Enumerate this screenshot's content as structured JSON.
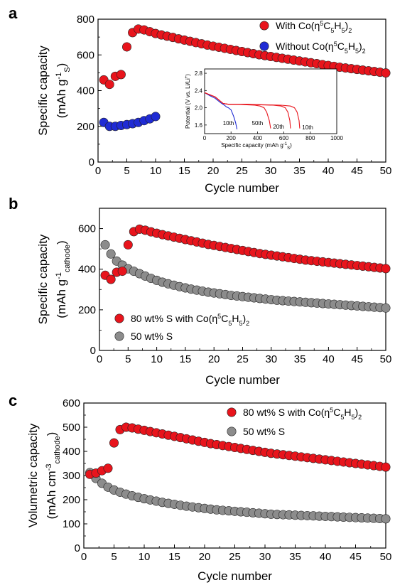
{
  "chart_data": [
    {
      "type": "scatter",
      "panel_label": "a",
      "xlabel": "Cycle number",
      "ylabel_main": "Specific capacity",
      "ylabel_unit": {
        "pre": "(mAh g",
        "sup": "-1",
        "sub": "S",
        "post": ")"
      },
      "xlim": [
        0,
        50
      ],
      "ylim": [
        0,
        800
      ],
      "xticks": [
        0,
        5,
        10,
        15,
        20,
        25,
        30,
        35,
        40,
        45,
        50
      ],
      "yticks": [
        0,
        200,
        400,
        600,
        800
      ],
      "legend_position": "top-right",
      "series": [
        {
          "name": "With Co(η5C5H5)2",
          "name_parts": {
            "pre": "With Co(η",
            "sup": "5",
            "mid": "C",
            "sub1": "5",
            "mid2": "H",
            "sub2": "5",
            "post": ")",
            "sub3": "2"
          },
          "color": "#e8141c",
          "x": [
            1,
            2,
            3,
            4,
            5,
            6,
            7,
            8,
            9,
            10,
            11,
            12,
            13,
            14,
            15,
            16,
            17,
            18,
            19,
            20,
            21,
            22,
            23,
            24,
            25,
            26,
            27,
            28,
            29,
            30,
            31,
            32,
            33,
            34,
            35,
            36,
            37,
            38,
            39,
            40,
            41,
            42,
            43,
            44,
            45,
            46,
            47,
            48,
            49,
            50
          ],
          "y": [
            460,
            435,
            480,
            490,
            645,
            725,
            745,
            740,
            730,
            720,
            712,
            705,
            698,
            690,
            683,
            676,
            669,
            662,
            655,
            649,
            643,
            637,
            631,
            625,
            619,
            613,
            607,
            601,
            596,
            591,
            586,
            581,
            576,
            571,
            566,
            561,
            556,
            551,
            546,
            541,
            536,
            531,
            527,
            523,
            519,
            515,
            511,
            507,
            503,
            499
          ]
        },
        {
          "name": "Without Co(η5C5H5)2",
          "name_parts": {
            "pre": "Without Co(η",
            "sup": "5",
            "mid": "C",
            "sub1": "5",
            "mid2": "H",
            "sub2": "5",
            "post": ")",
            "sub3": "2"
          },
          "color": "#1f2bd4",
          "x": [
            1,
            2,
            3,
            4,
            5,
            6,
            7,
            8,
            9,
            10
          ],
          "y": [
            222,
            200,
            200,
            205,
            210,
            215,
            222,
            232,
            242,
            255
          ]
        }
      ],
      "inset": {
        "type": "line",
        "xlabel": "Specific capacity (mAh g",
        "xlabel_sup": "-1",
        "xlabel_sub": "S",
        "xlabel_post": ")",
        "ylabel": "Potential (V vs. Li/Li",
        "ylabel_sup": "+",
        "ylabel_post": ")",
        "xlim": [
          0,
          1000
        ],
        "ylim": [
          1.4,
          2.9
        ],
        "xticks": [
          0,
          200,
          400,
          600,
          800,
          1000
        ],
        "yticks": [
          1.6,
          2.0,
          2.4,
          2.8
        ],
        "annotations": [
          "10th",
          "50th",
          "20th",
          "10th"
        ],
        "series": [
          {
            "name": "Without Co(η5C5H5)2 10th",
            "color": "#1f2bd4",
            "x": [
              0,
              40,
              80,
              120,
              150,
              165,
              180,
              200,
              220,
              235,
              245
            ],
            "y": [
              2.35,
              2.28,
              2.22,
              2.12,
              2.06,
              2.02,
              2.0,
              1.95,
              1.8,
              1.65,
              1.5
            ]
          },
          {
            "name": "With Co(η5C5H5)2 50th",
            "color": "#e8141c",
            "x": [
              0,
              40,
              80,
              140,
              180,
              250,
              320,
              380,
              420,
              450,
              470,
              490,
              500
            ],
            "y": [
              2.35,
              2.3,
              2.25,
              2.1,
              2.08,
              2.08,
              2.07,
              2.06,
              2.04,
              2.0,
              1.9,
              1.7,
              1.52
            ]
          },
          {
            "name": "With Co(η5C5H5)2 20th",
            "color": "#e8141c",
            "x": [
              0,
              40,
              80,
              140,
              180,
              300,
              420,
              520,
              580,
              610,
              630,
              645,
              650
            ],
            "y": [
              2.35,
              2.3,
              2.25,
              2.1,
              2.08,
              2.08,
              2.07,
              2.06,
              2.04,
              2.0,
              1.9,
              1.7,
              1.52
            ]
          },
          {
            "name": "With Co(η5C5H5)2 10th",
            "color": "#e8141c",
            "x": [
              0,
              40,
              80,
              140,
              180,
              320,
              460,
              580,
              650,
              680,
              700,
              715,
              720
            ],
            "y": [
              2.35,
              2.3,
              2.25,
              2.1,
              2.08,
              2.08,
              2.07,
              2.06,
              2.04,
              2.0,
              1.9,
              1.7,
              1.52
            ]
          }
        ]
      }
    },
    {
      "type": "scatter",
      "panel_label": "b",
      "xlabel": "Cycle number",
      "ylabel_main": "Specific capacity",
      "ylabel_unit": {
        "pre": "(mAh g",
        "sup": "-1",
        "sub": "cathode",
        "post": ")"
      },
      "xlim": [
        0,
        50
      ],
      "ylim": [
        0,
        700
      ],
      "xticks": [
        0,
        5,
        10,
        15,
        20,
        25,
        30,
        35,
        40,
        45,
        50
      ],
      "yticks": [
        0,
        200,
        400,
        600
      ],
      "legend_position": "bottom-left",
      "series": [
        {
          "name": "80 wt% S with Co(η5C5H5)2",
          "name_parts": {
            "pre": "80 wt% S with Co(η",
            "sup": "5",
            "mid": "C",
            "sub1": "5",
            "mid2": "H",
            "sub2": "5",
            "post": ")",
            "sub3": "2"
          },
          "color": "#e8141c",
          "x": [
            1,
            2,
            3,
            4,
            5,
            6,
            7,
            8,
            9,
            10,
            11,
            12,
            13,
            14,
            15,
            16,
            17,
            18,
            19,
            20,
            21,
            22,
            23,
            24,
            25,
            26,
            27,
            28,
            29,
            30,
            31,
            32,
            33,
            34,
            35,
            36,
            37,
            38,
            39,
            40,
            41,
            42,
            43,
            44,
            45,
            46,
            47,
            48,
            49,
            50
          ],
          "y": [
            370,
            350,
            385,
            390,
            520,
            585,
            597,
            592,
            584,
            577,
            570,
            564,
            558,
            552,
            546,
            540,
            534,
            528,
            522,
            517,
            512,
            507,
            502,
            497,
            492,
            487,
            482,
            477,
            473,
            469,
            465,
            461,
            457,
            453,
            449,
            445,
            442,
            439,
            436,
            433,
            430,
            427,
            424,
            421,
            418,
            415,
            412,
            409,
            406,
            403
          ]
        },
        {
          "name": "50 wt% S",
          "color": "#8c8c8c",
          "x": [
            1,
            2,
            3,
            4,
            5,
            6,
            7,
            8,
            9,
            10,
            11,
            12,
            13,
            14,
            15,
            16,
            17,
            18,
            19,
            20,
            21,
            22,
            23,
            24,
            25,
            26,
            27,
            28,
            29,
            30,
            31,
            32,
            33,
            34,
            35,
            36,
            37,
            38,
            39,
            40,
            41,
            42,
            43,
            44,
            45,
            46,
            47,
            48,
            49,
            50
          ],
          "y": [
            520,
            475,
            440,
            420,
            402,
            390,
            378,
            366,
            355,
            345,
            336,
            328,
            321,
            314,
            308,
            302,
            297,
            292,
            287,
            283,
            279,
            275,
            271,
            268,
            265,
            262,
            259,
            256,
            253,
            250,
            247,
            245,
            243,
            241,
            239,
            237,
            235,
            233,
            231,
            229,
            227,
            225,
            223,
            221,
            219,
            217,
            215,
            213,
            211,
            209
          ]
        }
      ]
    },
    {
      "type": "scatter",
      "panel_label": "c",
      "xlabel": "Cycle number",
      "ylabel_main": "Volumetric capacity",
      "ylabel_unit": {
        "pre": "(mAh cm",
        "sup": "-3",
        "sub": "cathode",
        "post": ")"
      },
      "xlim": [
        0,
        50
      ],
      "ylim": [
        0,
        600
      ],
      "xticks": [
        0,
        5,
        10,
        15,
        20,
        25,
        30,
        35,
        40,
        45,
        50
      ],
      "yticks": [
        0,
        100,
        200,
        300,
        400,
        500,
        600
      ],
      "legend_position": "top-right",
      "series": [
        {
          "name": "80 wt% S with Co(η5C5H5)2",
          "name_parts": {
            "pre": "80 wt% S with Co(η",
            "sup": "5",
            "mid": "C",
            "sub1": "5",
            "mid2": "H",
            "sub2": "5",
            "post": ")",
            "sub3": "2"
          },
          "color": "#e8141c",
          "x": [
            1,
            2,
            3,
            4,
            5,
            6,
            7,
            8,
            9,
            10,
            11,
            12,
            13,
            14,
            15,
            16,
            17,
            18,
            19,
            20,
            21,
            22,
            23,
            24,
            25,
            26,
            27,
            28,
            29,
            30,
            31,
            32,
            33,
            34,
            35,
            36,
            37,
            38,
            39,
            40,
            41,
            42,
            43,
            44,
            45,
            46,
            47,
            48,
            49,
            50
          ],
          "y": [
            305,
            310,
            320,
            330,
            435,
            490,
            500,
            497,
            492,
            487,
            482,
            477,
            472,
            467,
            462,
            457,
            452,
            447,
            442,
            437,
            432,
            428,
            424,
            420,
            416,
            412,
            408,
            404,
            400,
            396,
            392,
            389,
            386,
            383,
            380,
            377,
            374,
            371,
            368,
            365,
            362,
            359,
            356,
            353,
            350,
            347,
            344,
            341,
            338,
            335
          ]
        },
        {
          "name": "50 wt% S",
          "color": "#8c8c8c",
          "x": [
            1,
            2,
            3,
            4,
            5,
            6,
            7,
            8,
            9,
            10,
            11,
            12,
            13,
            14,
            15,
            16,
            17,
            18,
            19,
            20,
            21,
            22,
            23,
            24,
            25,
            26,
            27,
            28,
            29,
            30,
            31,
            32,
            33,
            34,
            35,
            36,
            37,
            38,
            39,
            40,
            41,
            42,
            43,
            44,
            45,
            46,
            47,
            48,
            49,
            50
          ],
          "y": [
            312,
            288,
            268,
            252,
            240,
            231,
            223,
            216,
            210,
            204,
            199,
            194,
            189,
            185,
            181,
            177,
            173,
            170,
            167,
            164,
            161,
            158,
            156,
            154,
            152,
            150,
            148,
            146,
            144,
            142,
            140,
            139,
            138,
            137,
            136,
            135,
            134,
            133,
            132,
            131,
            130,
            129,
            128,
            127,
            126,
            125,
            124,
            123,
            122,
            121
          ]
        }
      ]
    }
  ]
}
